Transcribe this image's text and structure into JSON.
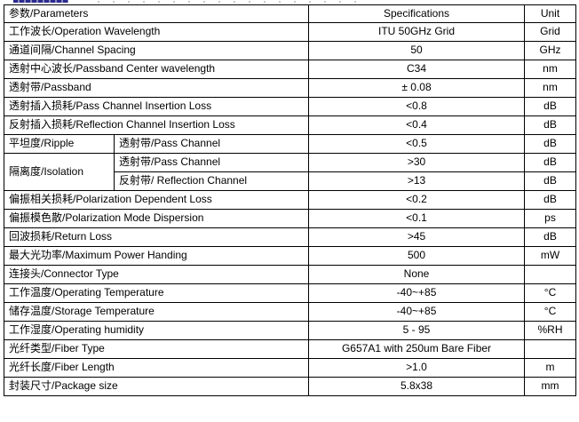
{
  "top_fragment": {
    "description": "cropped bottom edge of an underlined blue heading, text not legible",
    "color": "#2b2b8f"
  },
  "table": {
    "header": {
      "parameters": "参数/Parameters",
      "specifications": "Specifications",
      "unit": "Unit"
    },
    "rows": [
      {
        "param": "工作波长/Operation Wavelength",
        "spec": "ITU 50GHz Grid",
        "unit": "Grid"
      },
      {
        "param": "通道间隔/Channel Spacing",
        "spec": "50",
        "unit": "GHz"
      },
      {
        "param": "透射中心波长/Passband Center wavelength",
        "spec": "C34",
        "unit": "nm"
      },
      {
        "param": "透射带/Passband",
        "spec": "± 0.08",
        "unit": "nm"
      },
      {
        "param": "透射插入损耗/Pass Channel Insertion Loss",
        "spec": "<0.8",
        "unit": "dB"
      },
      {
        "param": "反射插入损耗/Reflection Channel Insertion Loss",
        "spec": "<0.4",
        "unit": "dB"
      },
      {
        "param": "平坦度/Ripple",
        "sub": "透射带/Pass Channel",
        "spec": "<0.5",
        "unit": "dB"
      },
      {
        "param": "隔离度/Isolation",
        "param_rowspan": 2,
        "sub": "透射带/Pass Channel",
        "spec": ">30",
        "unit": "dB"
      },
      {
        "param": null,
        "sub": "反射带/ Reflection Channel",
        "spec": ">13",
        "unit": "dB"
      },
      {
        "param": "偏振相关损耗/Polarization Dependent Loss",
        "spec": "<0.2",
        "unit": "dB"
      },
      {
        "param": "偏振模色散/Polarization Mode Dispersion",
        "spec": "<0.1",
        "unit": "ps"
      },
      {
        "param": "回波损耗/Return Loss",
        "spec": ">45",
        "unit": "dB"
      },
      {
        "param": "最大光功率/Maximum Power Handing",
        "spec": "500",
        "unit": "mW"
      },
      {
        "param": "连接头/Connector Type",
        "spec": "None",
        "unit": ""
      },
      {
        "param": "工作温度/Operating Temperature",
        "spec": "-40~+85",
        "unit": "°C"
      },
      {
        "param": "储存温度/Storage Temperature",
        "spec": "-40~+85",
        "unit": "°C"
      },
      {
        "param": "工作湿度/Operating humidity",
        "spec": "5 - 95",
        "unit": "%RH"
      },
      {
        "param": "光纤类型/Fiber Type",
        "spec": "G657A1 with 250um Bare Fiber",
        "unit": ""
      },
      {
        "param": "光纤长度/Fiber Length",
        "spec": ">1.0",
        "unit": "m"
      },
      {
        "param": "封装尺寸/Package size",
        "spec": "5.8x38",
        "unit": "mm"
      }
    ]
  }
}
